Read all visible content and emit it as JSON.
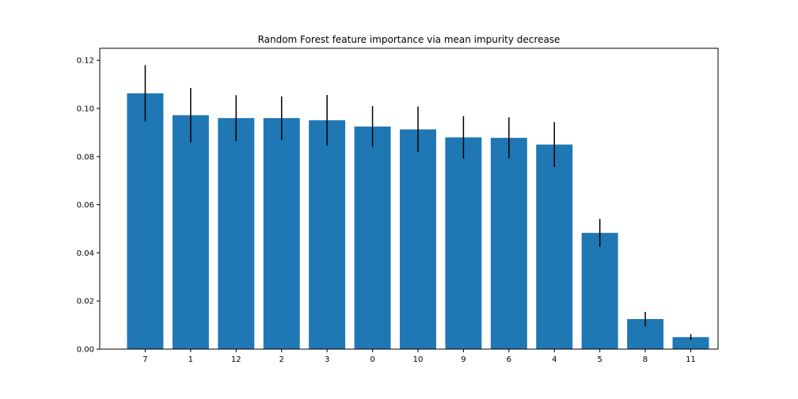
{
  "chart_data": {
    "type": "bar",
    "title": "Random Forest feature importance via mean impurity decrease",
    "xlabel": "",
    "ylabel": "",
    "categories": [
      "7",
      "1",
      "12",
      "2",
      "3",
      "0",
      "10",
      "9",
      "6",
      "4",
      "5",
      "8",
      "11"
    ],
    "values": [
      0.1063,
      0.0972,
      0.096,
      0.096,
      0.0951,
      0.0925,
      0.0913,
      0.088,
      0.0878,
      0.085,
      0.0483,
      0.0125,
      0.005
    ],
    "errors": [
      0.0117,
      0.0113,
      0.0095,
      0.009,
      0.0105,
      0.0085,
      0.0095,
      0.0088,
      0.0085,
      0.0093,
      0.0058,
      0.003,
      0.0012
    ],
    "ylim": [
      0,
      0.125
    ],
    "yticks": [
      "0.00",
      "0.02",
      "0.04",
      "0.06",
      "0.08",
      "0.10",
      "0.12"
    ],
    "grid": false,
    "colors": {
      "bar": "#1f77b4",
      "error_bar": "#000000",
      "axes": "#000000",
      "background": "#ffffff"
    }
  }
}
